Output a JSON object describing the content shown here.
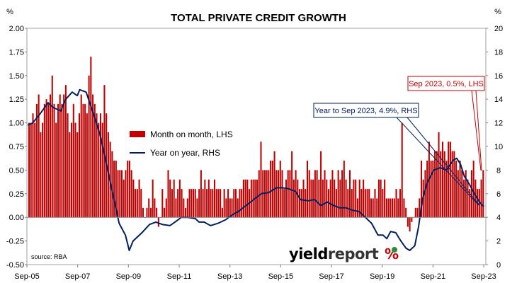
{
  "chart_data": {
    "type": "bar",
    "title": "TOTAL PRIVATE CREDIT GROWTH",
    "left_unit": "%",
    "right_unit": "%",
    "ylim_left": [
      -0.5,
      2.0
    ],
    "ylim_right": [
      0,
      20
    ],
    "left_ticks": [
      "-0.50",
      "-0.25",
      "0.00",
      "0.25",
      "0.50",
      "0.75",
      "1.00",
      "1.25",
      "1.50",
      "1.75",
      "2.00"
    ],
    "right_ticks": [
      "0",
      "2",
      "4",
      "6",
      "8",
      "10",
      "12",
      "14",
      "16",
      "18",
      "20"
    ],
    "x_ticks": [
      "Sep-05",
      "Sep-07",
      "Sep-09",
      "Sep-11",
      "Sep-13",
      "Sep-15",
      "Sep-17",
      "Sep-19",
      "Sep-21",
      "Sep-23"
    ],
    "legend_position": "center-left",
    "grid": false,
    "series": [
      {
        "name": "Month on month, LHS",
        "type": "bar",
        "axis": "left",
        "color": "#c00000",
        "values": [
          1.0,
          1.0,
          1.1,
          1.0,
          1.2,
          1.3,
          0.9,
          1.0,
          1.2,
          1.25,
          1.2,
          1.3,
          1.5,
          1.2,
          1.0,
          1.2,
          1.3,
          1.2,
          1.3,
          1.4,
          1.1,
          0.9,
          1.0,
          1.2,
          1.0,
          0.9,
          1.1,
          1.3,
          1.2,
          1.2,
          1.1,
          1.5,
          1.7,
          1.3,
          1.2,
          1.1,
          1.0,
          1.1,
          1.0,
          1.4,
          1.1,
          0.9,
          0.8,
          0.7,
          0.6,
          0.6,
          0.5,
          0.5,
          0.5,
          0.4,
          0.5,
          0.6,
          0.6,
          0.5,
          0.4,
          0.3,
          0.3,
          0.4,
          0.3,
          0.1,
          0.0,
          0.1,
          0.2,
          0.1,
          0.4,
          0.2,
          0.1,
          -0.1,
          0.0,
          0.3,
          0.1,
          0.2,
          0.5,
          0.4,
          0.3,
          0.4,
          0.2,
          0.3,
          0.4,
          0.3,
          0.2,
          0.1,
          0.2,
          0.3,
          0.3,
          0.3,
          0.3,
          0.2,
          0.3,
          0.5,
          0.3,
          0.4,
          0.3,
          0.4,
          0.3,
          0.3,
          0.4,
          0.3,
          0.3,
          0.3,
          0.1,
          0.3,
          0.2,
          0.3,
          0.2,
          0.2,
          0.3,
          0.3,
          0.2,
          0.3,
          0.3,
          0.4,
          0.4,
          0.4,
          0.3,
          0.4,
          0.4,
          0.4,
          0.4,
          0.5,
          0.8,
          0.5,
          0.5,
          0.5,
          0.5,
          0.6,
          0.6,
          0.7,
          0.5,
          0.5,
          0.6,
          0.5,
          0.3,
          0.4,
          0.5,
          0.5,
          0.7,
          0.4,
          0.5,
          0.4,
          0.3,
          0.3,
          0.4,
          0.3,
          0.6,
          0.5,
          0.4,
          0.4,
          0.5,
          0.5,
          0.4,
          0.7,
          0.4,
          0.5,
          0.4,
          0.3,
          0.4,
          0.5,
          0.4,
          0.3,
          0.5,
          0.4,
          0.5,
          0.6,
          0.4,
          0.3,
          0.5,
          0.3,
          0.4,
          0.4,
          0.2,
          0.4,
          0.3,
          0.4,
          0.3,
          0.3,
          0.3,
          0.2,
          0.2,
          0.3,
          0.2,
          0.4,
          0.4,
          0.3,
          0.4,
          0.2,
          0.2,
          0.2,
          0.2,
          0.2,
          0.3,
          0.2,
          0.3,
          1.0,
          0.2,
          0.1,
          -0.1,
          -0.15,
          -0.05,
          0.0,
          0.1,
          0.1,
          0.2,
          0.6,
          0.4,
          0.5,
          0.6,
          0.8,
          0.6,
          0.6,
          0.7,
          0.7,
          0.9,
          0.7,
          0.8,
          0.7,
          0.6,
          0.8,
          0.8,
          0.7,
          0.7,
          0.6,
          0.5,
          0.6,
          0.5,
          0.4,
          0.5,
          0.4,
          0.3,
          0.5,
          0.6,
          0.4,
          0.3,
          0.3,
          0.4,
          0.5
        ]
      },
      {
        "name": "Year on year, RHS",
        "type": "line",
        "axis": "right",
        "color": "#002060",
        "points": [
          [
            2005.7,
            11.8
          ],
          [
            2005.9,
            12.0
          ],
          [
            2006.2,
            12.8
          ],
          [
            2006.5,
            13.7
          ],
          [
            2006.7,
            13.3
          ],
          [
            2007.0,
            13.0
          ],
          [
            2007.2,
            14.0
          ],
          [
            2007.45,
            14.6
          ],
          [
            2007.65,
            14.3
          ],
          [
            2007.75,
            14.8
          ],
          [
            2008.0,
            14.6
          ],
          [
            2008.3,
            12.7
          ],
          [
            2008.55,
            11.0
          ],
          [
            2008.8,
            8.5
          ],
          [
            2009.05,
            6.0
          ],
          [
            2009.3,
            3.5
          ],
          [
            2009.55,
            2.5
          ],
          [
            2009.7,
            1.2
          ],
          [
            2009.85,
            2.0
          ],
          [
            2010.2,
            2.7
          ],
          [
            2010.5,
            3.4
          ],
          [
            2010.75,
            3.6
          ],
          [
            2011.0,
            3.4
          ],
          [
            2011.3,
            3.3
          ],
          [
            2011.5,
            3.6
          ],
          [
            2011.75,
            4.0
          ],
          [
            2012.0,
            4.0
          ],
          [
            2012.3,
            3.9
          ],
          [
            2012.45,
            3.6
          ],
          [
            2012.65,
            3.6
          ],
          [
            2012.9,
            3.3
          ],
          [
            2013.2,
            3.5
          ],
          [
            2013.5,
            3.8
          ],
          [
            2013.75,
            4.2
          ],
          [
            2014.0,
            4.5
          ],
          [
            2014.3,
            5.0
          ],
          [
            2014.6,
            5.5
          ],
          [
            2014.9,
            6.0
          ],
          [
            2015.2,
            6.1
          ],
          [
            2015.5,
            6.5
          ],
          [
            2015.75,
            6.5
          ],
          [
            2016.0,
            6.4
          ],
          [
            2016.25,
            6.2
          ],
          [
            2016.45,
            5.5
          ],
          [
            2016.75,
            5.4
          ],
          [
            2017.0,
            5.5
          ],
          [
            2017.25,
            5.0
          ],
          [
            2017.5,
            5.3
          ],
          [
            2017.75,
            5.0
          ],
          [
            2018.0,
            4.8
          ],
          [
            2018.25,
            4.8
          ],
          [
            2018.5,
            4.6
          ],
          [
            2018.75,
            4.5
          ],
          [
            2019.0,
            4.0
          ],
          [
            2019.25,
            3.5
          ],
          [
            2019.5,
            2.5
          ],
          [
            2019.7,
            2.5
          ],
          [
            2019.85,
            2.2
          ],
          [
            2020.0,
            2.8
          ],
          [
            2020.2,
            2.7
          ],
          [
            2020.4,
            2.0
          ],
          [
            2020.6,
            1.4
          ],
          [
            2020.75,
            1.2
          ],
          [
            2020.95,
            1.6
          ],
          [
            2021.1,
            3.2
          ],
          [
            2021.25,
            5.5
          ],
          [
            2021.45,
            7.0
          ],
          [
            2021.7,
            8.0
          ],
          [
            2021.95,
            8.2
          ],
          [
            2022.2,
            8.0
          ],
          [
            2022.45,
            8.8
          ],
          [
            2022.6,
            9.0
          ],
          [
            2022.75,
            8.5
          ],
          [
            2022.9,
            7.5
          ],
          [
            2023.1,
            6.8
          ],
          [
            2023.3,
            6.0
          ],
          [
            2023.5,
            5.3
          ],
          [
            2023.67,
            4.9
          ]
        ]
      }
    ],
    "annotations": [
      {
        "text": "Sep 2023, 0.5%, LHS",
        "color": "#c00000"
      },
      {
        "text": "Year to Sep 2023, 4.9%, RHS",
        "color": "#002060"
      }
    ],
    "source": "source: RBA",
    "brand": {
      "name": "yieldreport",
      "symbol": "%",
      "colors": [
        "#000000",
        "#c00000",
        "#2e8b3a"
      ]
    }
  }
}
